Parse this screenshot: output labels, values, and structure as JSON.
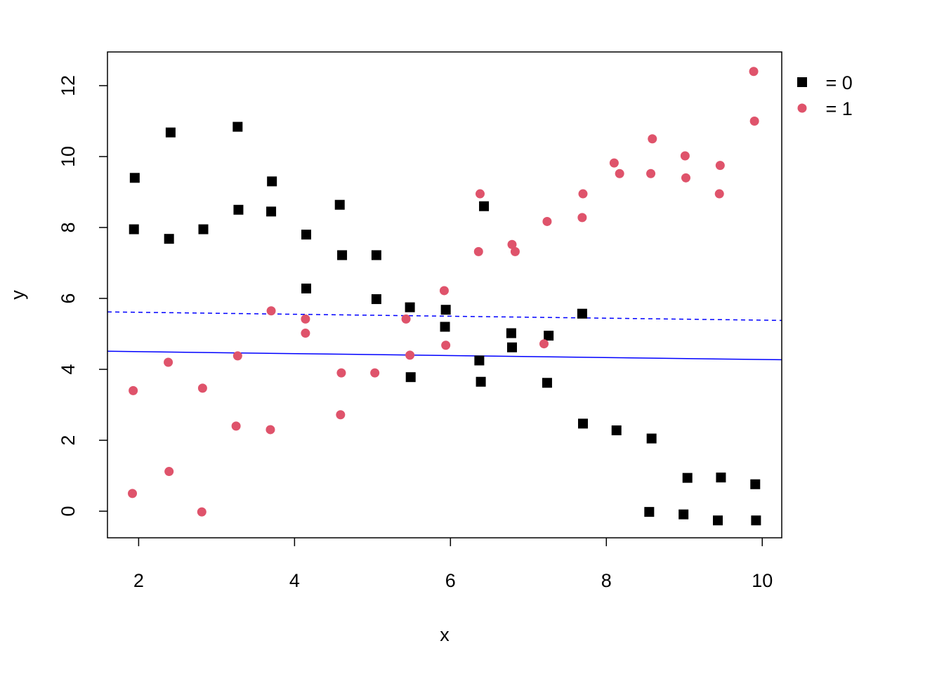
{
  "chart_data": {
    "type": "scatter",
    "xlabel": "x",
    "ylabel": "y",
    "xlim": [
      1.6,
      10.25
    ],
    "ylim": [
      -0.75,
      12.95
    ],
    "x_ticks": [
      "2",
      "4",
      "6",
      "8",
      "10"
    ],
    "y_ticks": [
      "0",
      "2",
      "4",
      "6",
      "8",
      "10",
      "12"
    ],
    "grid": false,
    "legend_position": "top-right, outside plot",
    "legend": [
      {
        "label": " = 0",
        "marker": "square",
        "color": "#000000"
      },
      {
        "label": " = 1",
        "marker": "circle",
        "color": "#df536b"
      }
    ],
    "series": [
      {
        "label": " = 0",
        "marker": "square",
        "color": "#000000",
        "points": [
          [
            1.95,
            9.4
          ],
          [
            1.94,
            7.95
          ],
          [
            2.41,
            10.68
          ],
          [
            2.39,
            7.68
          ],
          [
            2.83,
            7.95
          ],
          [
            3.27,
            10.84
          ],
          [
            3.28,
            8.5
          ],
          [
            3.71,
            9.3
          ],
          [
            3.7,
            8.45
          ],
          [
            4.15,
            7.8
          ],
          [
            4.15,
            6.28
          ],
          [
            4.58,
            8.64
          ],
          [
            4.61,
            7.22
          ],
          [
            5.05,
            7.22
          ],
          [
            5.05,
            5.98
          ],
          [
            5.48,
            5.75
          ],
          [
            5.49,
            3.78
          ],
          [
            5.94,
            5.68
          ],
          [
            5.93,
            5.2
          ],
          [
            6.43,
            8.6
          ],
          [
            6.37,
            4.25
          ],
          [
            6.39,
            3.65
          ],
          [
            6.78,
            5.02
          ],
          [
            6.79,
            4.62
          ],
          [
            7.26,
            4.95
          ],
          [
            7.24,
            3.62
          ],
          [
            7.69,
            5.57
          ],
          [
            7.7,
            2.47
          ],
          [
            8.13,
            2.28
          ],
          [
            8.58,
            2.05
          ],
          [
            8.55,
            -0.02
          ],
          [
            9.04,
            0.94
          ],
          [
            8.99,
            -0.09
          ],
          [
            9.47,
            0.95
          ],
          [
            9.43,
            -0.26
          ],
          [
            9.91,
            0.76
          ],
          [
            9.92,
            -0.26
          ]
        ]
      },
      {
        "label": " = 1",
        "marker": "circle",
        "color": "#df536b",
        "points": [
          [
            1.93,
            3.4
          ],
          [
            1.92,
            0.5
          ],
          [
            2.38,
            4.2
          ],
          [
            2.39,
            1.12
          ],
          [
            2.82,
            3.47
          ],
          [
            2.81,
            -0.02
          ],
          [
            3.27,
            4.38
          ],
          [
            3.25,
            2.4
          ],
          [
            3.7,
            5.65
          ],
          [
            3.69,
            2.3
          ],
          [
            4.14,
            5.42
          ],
          [
            4.14,
            5.02
          ],
          [
            4.6,
            3.9
          ],
          [
            4.59,
            2.72
          ],
          [
            5.03,
            3.9
          ],
          [
            5.43,
            5.42
          ],
          [
            5.48,
            4.4
          ],
          [
            5.92,
            6.22
          ],
          [
            5.94,
            4.68
          ],
          [
            6.38,
            8.95
          ],
          [
            6.36,
            7.32
          ],
          [
            6.79,
            7.52
          ],
          [
            6.83,
            7.32
          ],
          [
            7.24,
            8.17
          ],
          [
            7.2,
            4.72
          ],
          [
            7.7,
            8.95
          ],
          [
            7.69,
            8.28
          ],
          [
            8.1,
            9.82
          ],
          [
            8.17,
            9.52
          ],
          [
            8.59,
            10.5
          ],
          [
            8.57,
            9.52
          ],
          [
            9.01,
            10.02
          ],
          [
            9.02,
            9.4
          ],
          [
            9.46,
            9.75
          ],
          [
            9.45,
            8.95
          ],
          [
            9.89,
            12.4
          ],
          [
            9.9,
            11.0
          ]
        ]
      }
    ],
    "lines": [
      {
        "style": "dashed",
        "color": "#0000ff",
        "points": [
          [
            1.6,
            5.62
          ],
          [
            10.25,
            5.38
          ]
        ]
      },
      {
        "style": "solid",
        "color": "#0000ff",
        "points": [
          [
            1.6,
            4.51
          ],
          [
            10.25,
            4.27
          ]
        ]
      }
    ]
  }
}
